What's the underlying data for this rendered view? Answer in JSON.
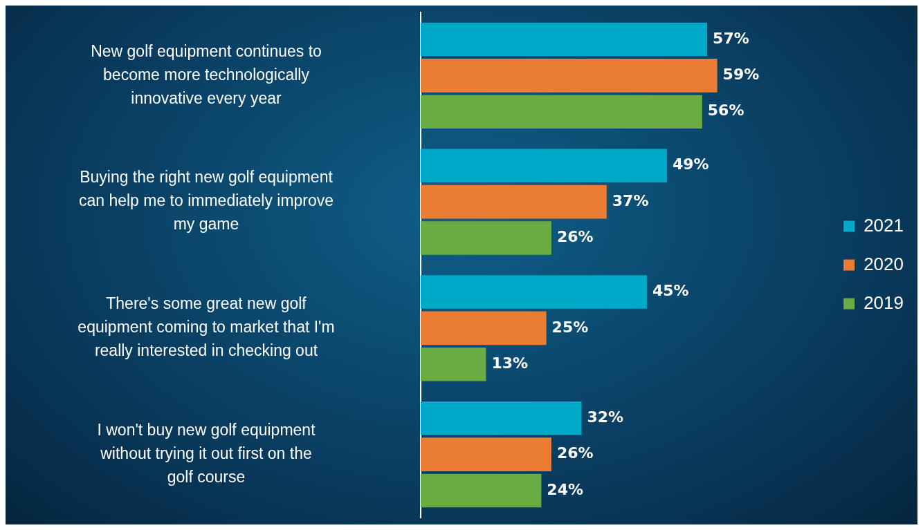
{
  "chart_data": {
    "type": "bar",
    "orientation": "horizontal",
    "categories": [
      "New golf equipment continues to become more technologically innovative every year",
      "Buying the right new golf equipment can help me to immediately improve my game",
      "There's some great new golf equipment coming to market that I'm really interested in checking out",
      "I won't buy new golf equipment without trying it out first on the golf course"
    ],
    "series": [
      {
        "name": "2021",
        "color": "#00a9c8",
        "values": [
          57,
          49,
          45,
          32
        ],
        "value_labels": [
          "57%",
          "49%",
          "45%",
          "32%"
        ]
      },
      {
        "name": "2020",
        "color": "#ea7d33",
        "values": [
          59,
          37,
          25,
          26
        ],
        "value_labels": [
          "59%",
          "37%",
          "25%",
          "26%"
        ]
      },
      {
        "name": "2019",
        "color": "#6aab42",
        "values": [
          56,
          26,
          13,
          24
        ],
        "value_labels": [
          "56%",
          "26%",
          "13%",
          "24%"
        ]
      }
    ],
    "legend": "right"
  }
}
